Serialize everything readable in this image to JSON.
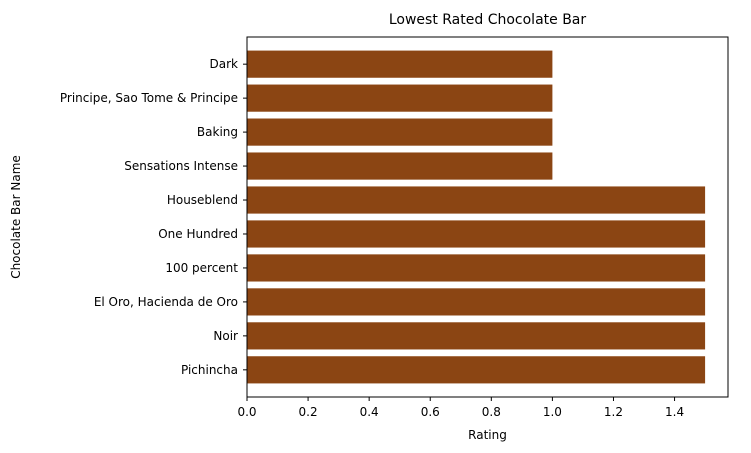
{
  "chart_data": {
    "type": "bar",
    "orientation": "horizontal",
    "title": "Lowest Rated Chocolate Bar",
    "xlabel": "Rating",
    "ylabel": "Chocolate Bar Name",
    "categories": [
      "Pichincha",
      "Noir",
      "El Oro, Hacienda de Oro",
      "100 percent",
      "One Hundred",
      "Houseblend",
      "Sensations Intense",
      "Baking",
      "Principe, Sao Tome & Principe",
      "Dark"
    ],
    "values": [
      1.5,
      1.5,
      1.5,
      1.5,
      1.5,
      1.5,
      1.0,
      1.0,
      1.0,
      1.0
    ],
    "xlim": [
      0,
      1.575
    ],
    "xticks": [
      0.0,
      0.2,
      0.4,
      0.6,
      0.8,
      1.0,
      1.2,
      1.4
    ],
    "xtick_labels": [
      "0.0",
      "0.2",
      "0.4",
      "0.6",
      "0.8",
      "1.0",
      "1.2",
      "1.4"
    ],
    "bar_color": "#8B4513",
    "grid": false,
    "legend": "none"
  }
}
